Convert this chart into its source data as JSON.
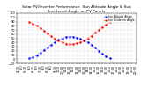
{
  "title": "Solar PV/Inverter Performance  Sun Altitude Angle & Sun Incidence Angle on PV Panels",
  "background_color": "#ffffff",
  "grid_color": "#bbbbbb",
  "blue_label": "Sun Altitude Angle",
  "red_label": "Sun Incidence Angle",
  "x_numeric": [
    4.5,
    5.0,
    5.5,
    6.0,
    6.5,
    7.0,
    7.5,
    8.0,
    8.5,
    9.0,
    9.5,
    10.0,
    10.5,
    11.0,
    11.5,
    12.0,
    12.5,
    13.0,
    13.5,
    14.0,
    14.5,
    15.0,
    15.5,
    16.0,
    16.5,
    17.0,
    17.5,
    18.0,
    18.5,
    19.0,
    19.5,
    20.0,
    20.5
  ],
  "xtick_labels": [
    "4:30",
    "5:0",
    "5:30",
    "6:0",
    "6:30",
    "7:0",
    "7:30",
    "8:0",
    "8:30",
    "9:0",
    "9:30",
    "10:0",
    "10:30",
    "11:0",
    "11:30",
    "12:0",
    "12:30",
    "13:0",
    "13:30",
    "14:0",
    "14:30",
    "15:0",
    "15:30",
    "16:0",
    "16:30",
    "17:0",
    "17:30",
    "18:0",
    "18:30",
    "19:0",
    "19:30",
    "20:0",
    "20:30"
  ],
  "blue_y": [
    null,
    null,
    null,
    2,
    5,
    10,
    16,
    22,
    28,
    35,
    41,
    46,
    50,
    53,
    54,
    54,
    52,
    49,
    45,
    40,
    34,
    27,
    20,
    13,
    7,
    2,
    null,
    null,
    null,
    null,
    null,
    null,
    null
  ],
  "red_y": [
    null,
    null,
    null,
    88,
    85,
    80,
    74,
    68,
    62,
    55,
    49,
    44,
    40,
    37,
    36,
    36,
    38,
    41,
    45,
    50,
    56,
    63,
    70,
    77,
    83,
    88,
    null,
    null,
    null,
    null,
    null,
    null,
    null
  ],
  "ylim": [
    -10,
    110
  ],
  "xlim": [
    4.3,
    20.7
  ],
  "yticks": [
    -10,
    0,
    10,
    20,
    30,
    40,
    50,
    60,
    70,
    80,
    90,
    100,
    110
  ],
  "blue_color": "#0000ff",
  "red_color": "#ff0000",
  "title_fontsize": 3.2,
  "tick_fontsize": 2.5,
  "marker_size": 1.5,
  "linewidth": 0.5
}
